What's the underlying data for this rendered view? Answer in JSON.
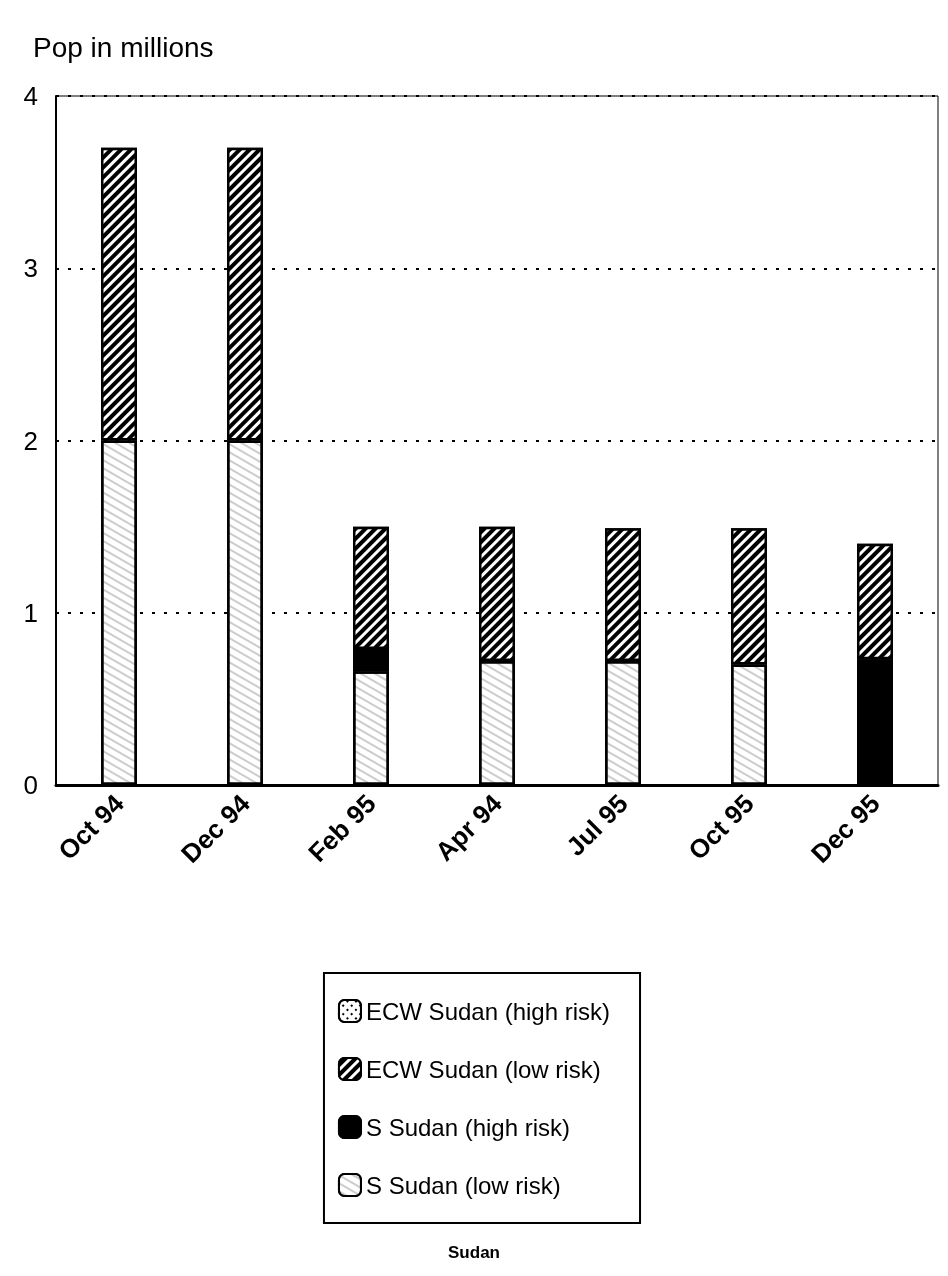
{
  "chart_data": {
    "type": "bar",
    "title": "Sudan",
    "ylabel": "Pop in millions",
    "categories": [
      "Oct 94",
      "Dec 94",
      "Feb 95",
      "Apr 94",
      "Jul 95",
      "Oct 95",
      "Dec 95"
    ],
    "stacked": true,
    "series": [
      {
        "name": "S Sudan (low risk)",
        "color": "#ffffff",
        "values": [
          2,
          2,
          0.66,
          0.72,
          0.72,
          0.7,
          0
        ]
      },
      {
        "name": "S Sudan (high risk)",
        "color": "#000000",
        "values": [
          0,
          0,
          0.13,
          0,
          0,
          0,
          0.73
        ]
      },
      {
        "name": "ECW Sudan (low risk)",
        "color": "#000000",
        "values": [
          1.7,
          1.7,
          0.71,
          0.78,
          0.77,
          0.79,
          0.67
        ]
      },
      {
        "name": "ECW Sudan (high risk)",
        "color": "#ffffff",
        "values": [
          0,
          0,
          0,
          0,
          0,
          0,
          0
        ]
      }
    ],
    "ylim": [
      0,
      4
    ],
    "yticks": [
      0,
      1,
      2,
      3,
      4
    ],
    "grid": "y",
    "legend": "bottom"
  }
}
